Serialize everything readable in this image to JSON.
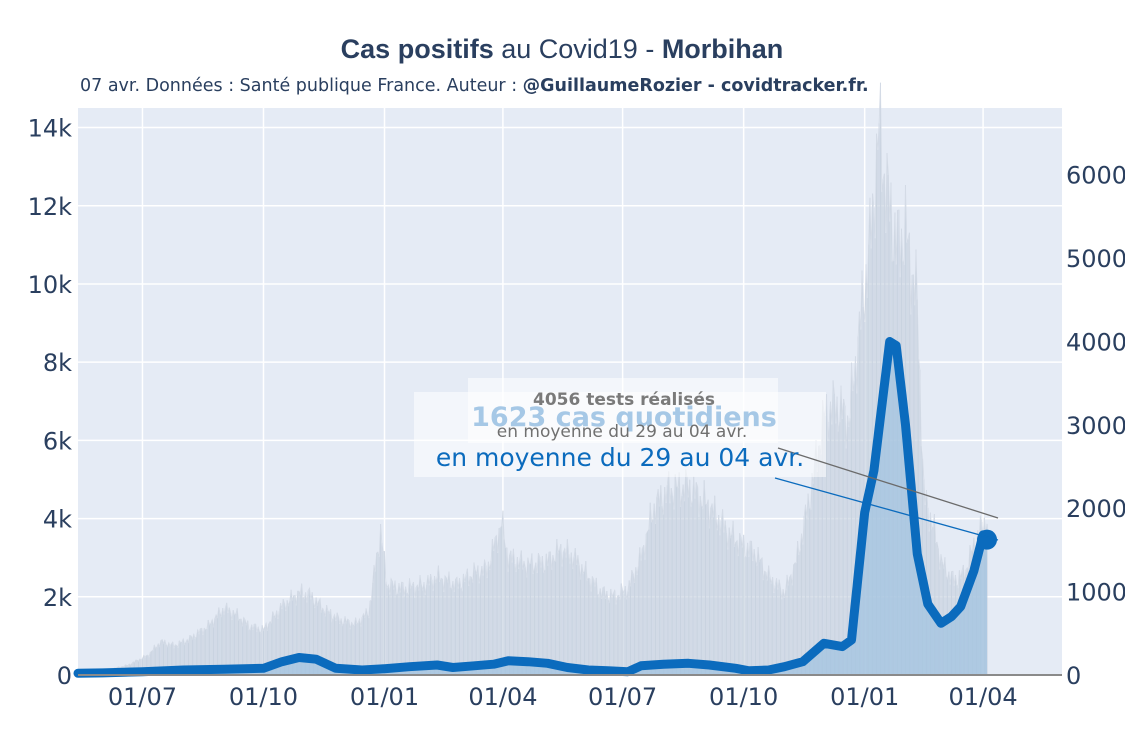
{
  "header": {
    "title_part1": "Cas positifs",
    "title_part2": " au Covid19 - ",
    "title_part3": "Morbihan",
    "subtitle_plain": "07 avr. Données : Santé publique France. Auteur : ",
    "subtitle_bold": "@GuillaumeRozier - covidtracker.fr."
  },
  "annotations": {
    "tests_title": "4056 tests réalisés",
    "tests_sub": "en moyenne du 29 au 04 avr.",
    "cases_title": "1623 cas quotidiens",
    "cases_sub": "en moyenne du 29 au 04 avr."
  },
  "colors": {
    "plot_bg": "#e5ebf5",
    "tests_fill": "#c9d3e0",
    "cases_fill": "#9fc2e0",
    "cases_line": "#0b6bbd",
    "text": "#2a3f5f",
    "grid": "#ffffff"
  },
  "chart_data": {
    "type": "line",
    "x_tick_labels": [
      "01/07",
      "01/10",
      "01/01",
      "01/04",
      "01/07",
      "01/10",
      "01/01",
      "01/04"
    ],
    "x_tick_dates": [
      "2020-07-01",
      "2020-10-01",
      "2021-01-01",
      "2021-04-01",
      "2021-07-01",
      "2021-10-01",
      "2022-01-01",
      "2022-04-01"
    ],
    "xlim": [
      "2020-05-13",
      "2022-05-31"
    ],
    "y_left": {
      "ylim": [
        0,
        14500
      ],
      "ticks": [
        0,
        2000,
        4000,
        6000,
        8000,
        10000,
        12000,
        14000
      ],
      "tick_labels": [
        "0",
        "2k",
        "4k",
        "6k",
        "8k",
        "10k",
        "12k",
        "14k"
      ]
    },
    "y_right": {
      "ylim": [
        0,
        6800
      ],
      "ticks": [
        0,
        1000,
        2000,
        3000,
        4000,
        5000,
        6000
      ],
      "tick_labels": [
        "0",
        "1000",
        "2000",
        "3000",
        "4000",
        "5000",
        "6000"
      ]
    },
    "series": [
      {
        "axis": "left",
        "style": "bars",
        "points": [
          [
            "2020-05-13",
            50
          ],
          [
            "2020-06-01",
            100
          ],
          [
            "2020-06-20",
            250
          ],
          [
            "2020-07-05",
            500
          ],
          [
            "2020-07-15",
            850
          ],
          [
            "2020-07-25",
            750
          ],
          [
            "2020-08-05",
            900
          ],
          [
            "2020-08-20",
            1250
          ],
          [
            "2020-09-01",
            1700
          ],
          [
            "2020-09-10",
            1550
          ],
          [
            "2020-09-20",
            1250
          ],
          [
            "2020-10-01",
            1150
          ],
          [
            "2020-10-15",
            1750
          ],
          [
            "2020-10-28",
            2100
          ],
          [
            "2020-11-05",
            2050
          ],
          [
            "2020-11-15",
            1700
          ],
          [
            "2020-11-28",
            1400
          ],
          [
            "2020-12-10",
            1300
          ],
          [
            "2020-12-20",
            1600
          ],
          [
            "2020-12-26",
            3000
          ],
          [
            "2020-12-29",
            3650
          ],
          [
            "2021-01-03",
            2300
          ],
          [
            "2021-01-15",
            2200
          ],
          [
            "2021-02-01",
            2300
          ],
          [
            "2021-02-10",
            2500
          ],
          [
            "2021-02-25",
            2300
          ],
          [
            "2021-03-10",
            2600
          ],
          [
            "2021-03-20",
            2700
          ],
          [
            "2021-03-31",
            3900
          ],
          [
            "2021-04-05",
            3000
          ],
          [
            "2021-04-20",
            2800
          ],
          [
            "2021-05-05",
            2900
          ],
          [
            "2021-05-15",
            3200
          ],
          [
            "2021-05-25",
            3000
          ],
          [
            "2021-06-05",
            2500
          ],
          [
            "2021-06-15",
            2100
          ],
          [
            "2021-06-25",
            2000
          ],
          [
            "2021-07-05",
            2200
          ],
          [
            "2021-07-15",
            3000
          ],
          [
            "2021-07-25",
            4300
          ],
          [
            "2021-08-05",
            4700
          ],
          [
            "2021-08-20",
            4800
          ],
          [
            "2021-09-05",
            4300
          ],
          [
            "2021-09-20",
            3600
          ],
          [
            "2021-10-01",
            3300
          ],
          [
            "2021-10-10",
            3100
          ],
          [
            "2021-10-20",
            2500
          ],
          [
            "2021-11-01",
            2100
          ],
          [
            "2021-11-10",
            2900
          ],
          [
            "2021-11-20",
            4500
          ],
          [
            "2021-12-01",
            6600
          ],
          [
            "2021-12-10",
            6900
          ],
          [
            "2021-12-20",
            6500
          ],
          [
            "2021-12-28",
            8800
          ],
          [
            "2022-01-05",
            11000
          ],
          [
            "2022-01-12",
            13900
          ],
          [
            "2022-01-17",
            12500
          ],
          [
            "2022-01-25",
            11000
          ],
          [
            "2022-02-01",
            11300
          ],
          [
            "2022-02-10",
            9500
          ],
          [
            "2022-02-15",
            4600
          ],
          [
            "2022-02-22",
            3800
          ],
          [
            "2022-03-01",
            2800
          ],
          [
            "2022-03-10",
            2400
          ],
          [
            "2022-03-18",
            2600
          ],
          [
            "2022-03-25",
            3300
          ],
          [
            "2022-04-01",
            3850
          ],
          [
            "2022-04-04",
            4000
          ]
        ]
      },
      {
        "axis": "right",
        "style": "area",
        "name": "",
        "points": [
          [
            "2020-05-13",
            20
          ],
          [
            "2020-06-01",
            25
          ],
          [
            "2020-07-01",
            40
          ],
          [
            "2020-08-01",
            60
          ],
          [
            "2020-09-01",
            70
          ],
          [
            "2020-10-01",
            80
          ],
          [
            "2020-10-15",
            160
          ],
          [
            "2020-10-28",
            210
          ],
          [
            "2020-11-10",
            190
          ],
          [
            "2020-11-25",
            80
          ],
          [
            "2020-12-15",
            60
          ],
          [
            "2021-01-01",
            75
          ],
          [
            "2021-01-20",
            100
          ],
          [
            "2021-02-10",
            120
          ],
          [
            "2021-02-22",
            90
          ],
          [
            "2021-03-10",
            110
          ],
          [
            "2021-03-25",
            130
          ],
          [
            "2021-04-05",
            170
          ],
          [
            "2021-04-20",
            160
          ],
          [
            "2021-05-05",
            140
          ],
          [
            "2021-05-20",
            90
          ],
          [
            "2021-06-05",
            60
          ],
          [
            "2021-06-20",
            50
          ],
          [
            "2021-07-05",
            40
          ],
          [
            "2021-07-15",
            110
          ],
          [
            "2021-08-01",
            130
          ],
          [
            "2021-08-20",
            140
          ],
          [
            "2021-09-05",
            120
          ],
          [
            "2021-09-25",
            80
          ],
          [
            "2021-10-05",
            50
          ],
          [
            "2021-10-20",
            60
          ],
          [
            "2021-11-01",
            100
          ],
          [
            "2021-11-15",
            160
          ],
          [
            "2021-12-01",
            380
          ],
          [
            "2021-12-15",
            340
          ],
          [
            "2021-12-22",
            420
          ],
          [
            "2022-01-01",
            1950
          ],
          [
            "2022-01-08",
            2450
          ],
          [
            "2022-01-20",
            4000
          ],
          [
            "2022-01-25",
            3950
          ],
          [
            "2022-02-01",
            3000
          ],
          [
            "2022-02-10",
            1450
          ],
          [
            "2022-02-18",
            850
          ],
          [
            "2022-02-28",
            620
          ],
          [
            "2022-03-08",
            700
          ],
          [
            "2022-03-15",
            820
          ],
          [
            "2022-03-25",
            1250
          ],
          [
            "2022-04-01",
            1680
          ],
          [
            "2022-04-04",
            1623
          ]
        ]
      }
    ]
  }
}
